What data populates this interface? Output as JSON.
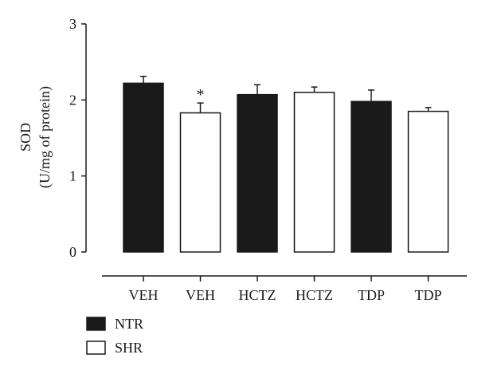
{
  "chart_data": {
    "type": "bar",
    "title": "",
    "ylabel": "SOD",
    "ylabel_unit": "(U/mg of protein)",
    "xlabel": "",
    "ylim": [
      0,
      3
    ],
    "yticks": [
      0,
      1,
      2,
      3
    ],
    "categories": [
      "VEH",
      "VEH",
      "HCTZ",
      "HCTZ",
      "TDP",
      "TDP"
    ],
    "values": [
      2.22,
      1.83,
      2.07,
      2.1,
      1.98,
      1.85
    ],
    "errors": [
      0.09,
      0.13,
      0.13,
      0.07,
      0.15,
      0.05
    ],
    "groups": [
      "NTR",
      "SHR",
      "NTR",
      "SHR",
      "NTR",
      "SHR"
    ],
    "annotations": [
      "",
      "*",
      "",
      "",
      "",
      ""
    ],
    "legend": [
      {
        "name": "NTR",
        "color": "#1a1a1a"
      },
      {
        "name": "SHR",
        "color": "#ffffff"
      }
    ],
    "legend_position": "bottom-left",
    "grid": false
  }
}
